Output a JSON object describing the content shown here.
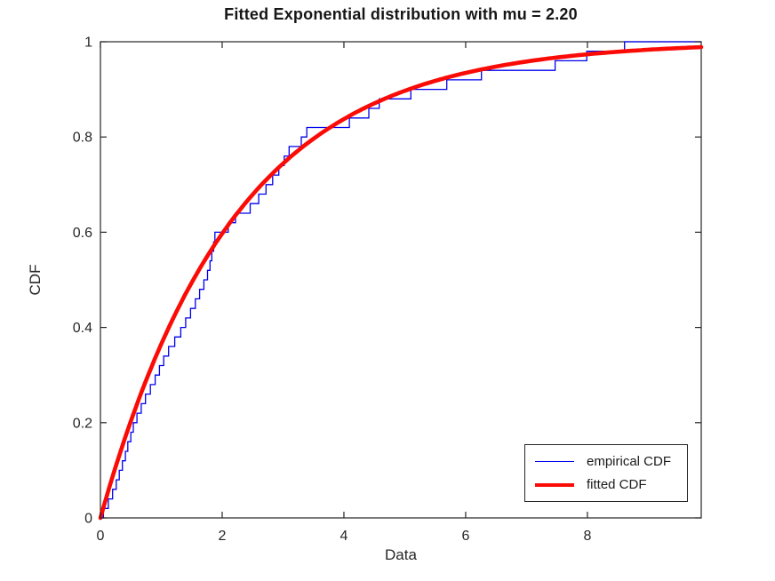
{
  "figure": {
    "background": "#ffffff"
  },
  "chart_data": {
    "type": "line",
    "title": "Fitted Exponential distribution with mu = 2.20",
    "xlabel": "Data",
    "ylabel": "CDF",
    "mu": 2.2,
    "xlim": [
      0,
      9.87
    ],
    "ylim": [
      0,
      1
    ],
    "x_ticks": [
      0,
      2,
      4,
      6,
      8
    ],
    "x_tick_labels": [
      "0",
      "2",
      "4",
      "6",
      "8"
    ],
    "y_ticks": [
      0,
      0.2,
      0.4,
      0.6,
      0.8,
      1
    ],
    "y_tick_labels": [
      "0",
      "0.2",
      "0.4",
      "0.6",
      "0.8",
      "1"
    ],
    "grid": false,
    "box": true,
    "tick_direction": "in",
    "legend_position": "bottom-right",
    "series": [
      {
        "name": "empirical CDF",
        "type": "step-ecdf",
        "color": "#0000EE",
        "line_width": 1.3,
        "n": 50,
        "sorted_sample": [
          0.05,
          0.13,
          0.2,
          0.26,
          0.31,
          0.36,
          0.41,
          0.45,
          0.5,
          0.54,
          0.6,
          0.67,
          0.74,
          0.82,
          0.9,
          0.97,
          1.04,
          1.12,
          1.22,
          1.32,
          1.4,
          1.48,
          1.56,
          1.63,
          1.7,
          1.76,
          1.8,
          1.83,
          1.86,
          1.88,
          2.1,
          2.22,
          2.46,
          2.6,
          2.72,
          2.83,
          2.93,
          3.02,
          3.1,
          3.3,
          3.39,
          4.09,
          4.41,
          4.58,
          5.1,
          5.69,
          6.26,
          7.47,
          7.99,
          8.61
        ]
      },
      {
        "name": "fitted CDF",
        "type": "exponential-cdf",
        "color": "#FB0B06",
        "line_width": 4.6,
        "mu": 2.2,
        "x_range": [
          0,
          9.87
        ]
      }
    ]
  },
  "colors": {
    "axis": "#262626",
    "tick_label": "#262626",
    "title": "#161616",
    "empirical": "#0000EE",
    "fitted": "#FB0B06",
    "background": "#ffffff"
  }
}
